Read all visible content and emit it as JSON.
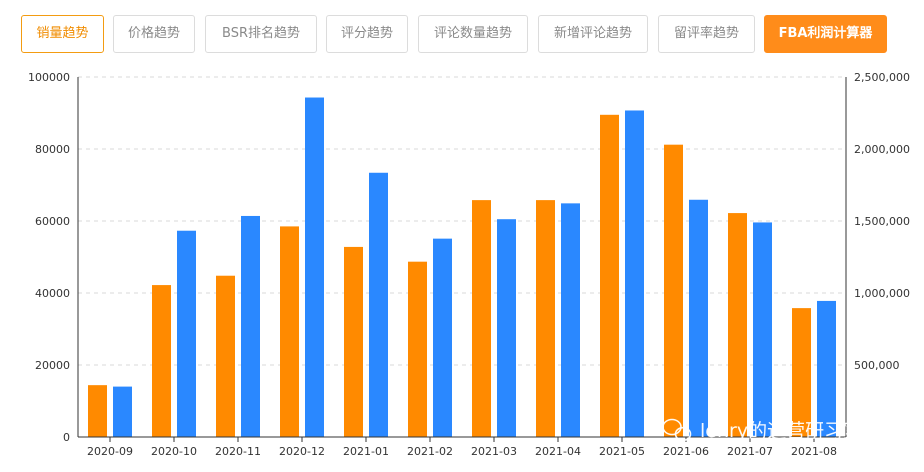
{
  "tabs": [
    {
      "label": "销量趋势",
      "state": "active"
    },
    {
      "label": "价格趋势",
      "state": "normal"
    },
    {
      "label": "BSR排名趋势",
      "state": "normal"
    },
    {
      "label": "评分趋势",
      "state": "normal"
    },
    {
      "label": "评论数量趋势",
      "state": "normal"
    },
    {
      "label": "新增评论趋势",
      "state": "normal"
    },
    {
      "label": "留评率趋势",
      "state": "normal"
    },
    {
      "label": "FBA利润计算器",
      "state": "primary"
    }
  ],
  "colors": {
    "orange": "#ff8a00",
    "blue": "#2a88ff",
    "accent": "#f39c12",
    "grid": "#d9d9d9"
  },
  "watermark": "lenry的运营研习室",
  "chart_data": {
    "type": "bar",
    "grid": "dashed horizontal",
    "categories": [
      "2020-09",
      "2020-10",
      "2020-11",
      "2020-12",
      "2021-01",
      "2021-02",
      "2021-03",
      "2021-04",
      "2021-05",
      "2021-06",
      "2021-07",
      "2021-08"
    ],
    "y_left": {
      "min": 0,
      "max": 100000,
      "ticks": [
        "0",
        "20000",
        "40000",
        "60000",
        "80000",
        "100000"
      ]
    },
    "y_right": {
      "min": 0,
      "max": 2500000,
      "ticks": [
        "",
        "500,000",
        "1,000,000",
        "1,500,000",
        "2,000,000",
        "2,500,000"
      ]
    },
    "series": [
      {
        "axis": "left",
        "color": "#ff8a00",
        "values": [
          14400,
          42200,
          44800,
          58500,
          52800,
          48700,
          65800,
          65800,
          89500,
          81200,
          62200,
          35800
        ]
      },
      {
        "axis": "right",
        "color": "#2a88ff",
        "values": [
          350000,
          1432500,
          1535000,
          2357500,
          1835000,
          1377500,
          1512500,
          1622500,
          2267500,
          1647500,
          1490000,
          945000
        ]
      }
    ]
  }
}
